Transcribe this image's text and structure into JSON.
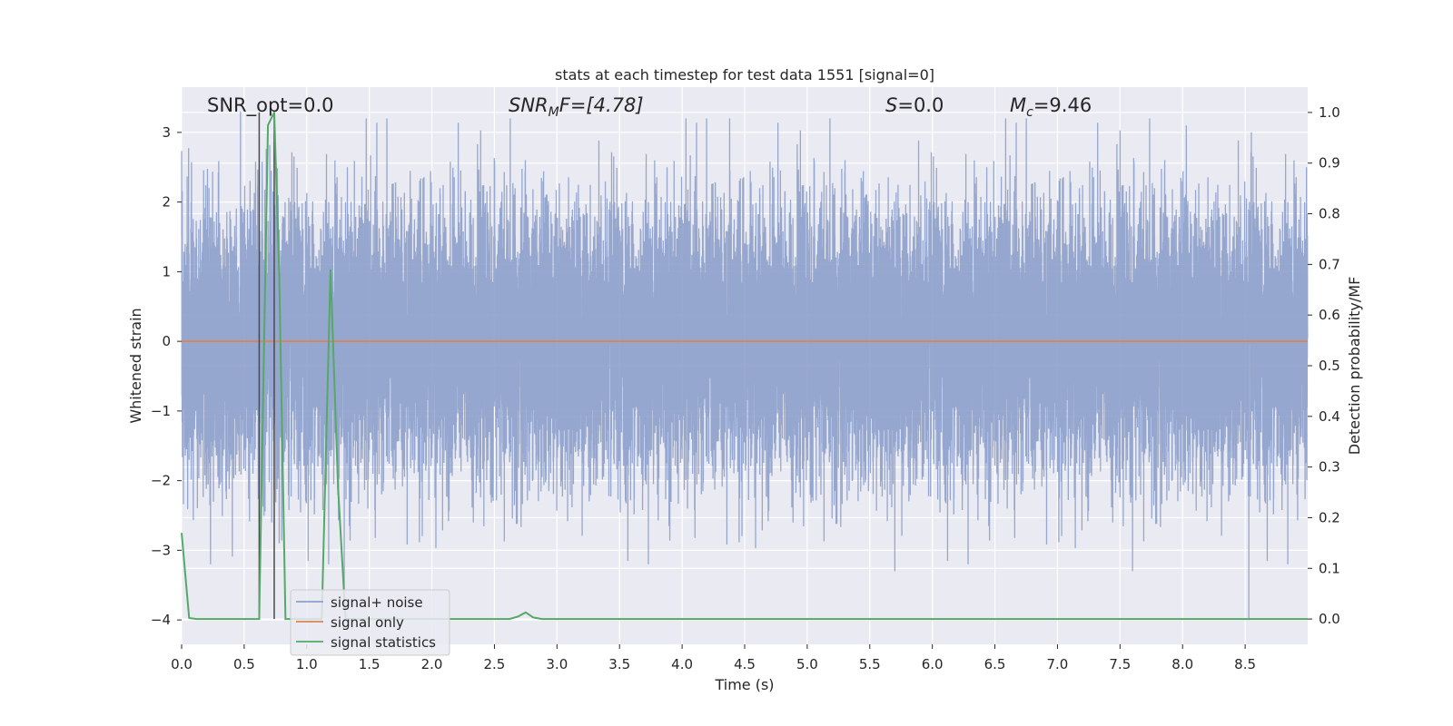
{
  "chart_data": {
    "type": "line",
    "title": "stats at each timestep for test data 1551 [signal=0]",
    "xlabel": "Time (s)",
    "ylabel": "Whitened strain",
    "y2label": "Detection probability/MF",
    "xlim": [
      0.0,
      9.0
    ],
    "ylim": [
      -4.35,
      3.65
    ],
    "y2lim": [
      -0.05,
      1.05
    ],
    "x_ticks": [
      0.0,
      0.5,
      1.0,
      1.5,
      2.0,
      2.5,
      3.0,
      3.5,
      4.0,
      4.5,
      5.0,
      5.5,
      6.0,
      6.5,
      7.0,
      7.5,
      8.0,
      8.5
    ],
    "x_tick_labels": [
      "0.0",
      "0.5",
      "1.0",
      "1.5",
      "2.0",
      "2.5",
      "3.0",
      "3.5",
      "4.0",
      "4.5",
      "5.0",
      "5.5",
      "6.0",
      "6.5",
      "7.0",
      "7.5",
      "8.0",
      "8.5"
    ],
    "y_ticks": [
      3,
      2,
      1,
      0,
      -1,
      -2,
      -3,
      -4
    ],
    "y_tick_labels": [
      "3",
      "2",
      "1",
      "0",
      "−1",
      "−2",
      "−3",
      "−4"
    ],
    "y2_ticks": [
      1.0,
      0.9,
      0.8,
      0.7,
      0.6,
      0.5,
      0.4,
      0.3,
      0.2,
      0.1,
      0.0
    ],
    "y2_tick_labels": [
      "1.0",
      "0.9",
      "0.8",
      "0.7",
      "0.6",
      "0.5",
      "0.4",
      "0.3",
      "0.2",
      "0.1",
      "0.0"
    ],
    "grid": true,
    "legend": {
      "placement": "lower-left",
      "entries": [
        {
          "label": "signal+ noise",
          "color": "#8da0cb"
        },
        {
          "label": "signal only",
          "color": "#dd8452"
        },
        {
          "label": "signal statistics",
          "color": "#55a868"
        }
      ]
    },
    "annotations": {
      "snr_opt": "SNR_opt=0.0",
      "snr_mf_main": "SNR",
      "snr_mf_sub": "M",
      "snr_mf_tail": "F=[4.78]",
      "s_main": "S",
      "s_tail": "=0.0",
      "mc_main": "M",
      "mc_sub": "c",
      "mc_tail": "=9.46"
    },
    "series": [
      {
        "name": "signal+ noise",
        "axis": "left",
        "color": "#8da0cb",
        "sample_rate_hz": 2048,
        "noise_std": 0.95,
        "notable_peaks": [
          {
            "x": 0.47,
            "y": 3.3
          },
          {
            "x": 0.62,
            "y": -2.6
          },
          {
            "x": 0.72,
            "y": -2.6
          },
          {
            "x": 0.78,
            "y": -2.9
          },
          {
            "x": 1.3,
            "y": -3.7
          },
          {
            "x": 4.38,
            "y": 3.2
          },
          {
            "x": 5.7,
            "y": -3.3
          },
          {
            "x": 7.6,
            "y": -3.3
          },
          {
            "x": 8.03,
            "y": 3.1
          },
          {
            "x": 8.53,
            "y": -4.0
          },
          {
            "x": 8.55,
            "y": 3.0
          }
        ]
      },
      {
        "name": "signal only",
        "axis": "left",
        "color": "#dd8452",
        "x": [
          0.0,
          9.0
        ],
        "y": [
          0.0,
          0.0
        ]
      },
      {
        "name": "signal statistics",
        "axis": "right",
        "color": "#55a868",
        "x": [
          0.0,
          0.06,
          0.12,
          0.2,
          0.3,
          0.4,
          0.5,
          0.55,
          0.62,
          0.69,
          0.74,
          0.78,
          0.83,
          0.88,
          0.95,
          1.0,
          1.05,
          1.12,
          1.19,
          1.25,
          1.31,
          1.38,
          1.5,
          2.0,
          2.5,
          2.62,
          2.69,
          2.75,
          2.81,
          2.88,
          3.0,
          4.0,
          5.0,
          6.0,
          7.0,
          8.0,
          9.0
        ],
        "y": [
          0.17,
          0.002,
          0.0,
          0.0,
          0.0,
          0.0,
          0.0,
          0.0,
          0.0,
          0.975,
          1.0,
          0.68,
          0.0,
          0.0,
          0.0,
          0.0,
          0.0,
          0.0,
          0.69,
          0.26,
          0.0,
          0.0,
          0.0,
          0.0,
          0.0,
          0.0,
          0.005,
          0.013,
          0.003,
          0.0,
          0.0,
          0.0,
          0.0,
          0.0,
          0.0,
          0.0,
          0.0
        ]
      }
    ],
    "vertical_markers": [
      {
        "x": 0.62,
        "color": "#4a4a4a"
      },
      {
        "x": 0.74,
        "color": "#4a4a4a"
      }
    ]
  }
}
